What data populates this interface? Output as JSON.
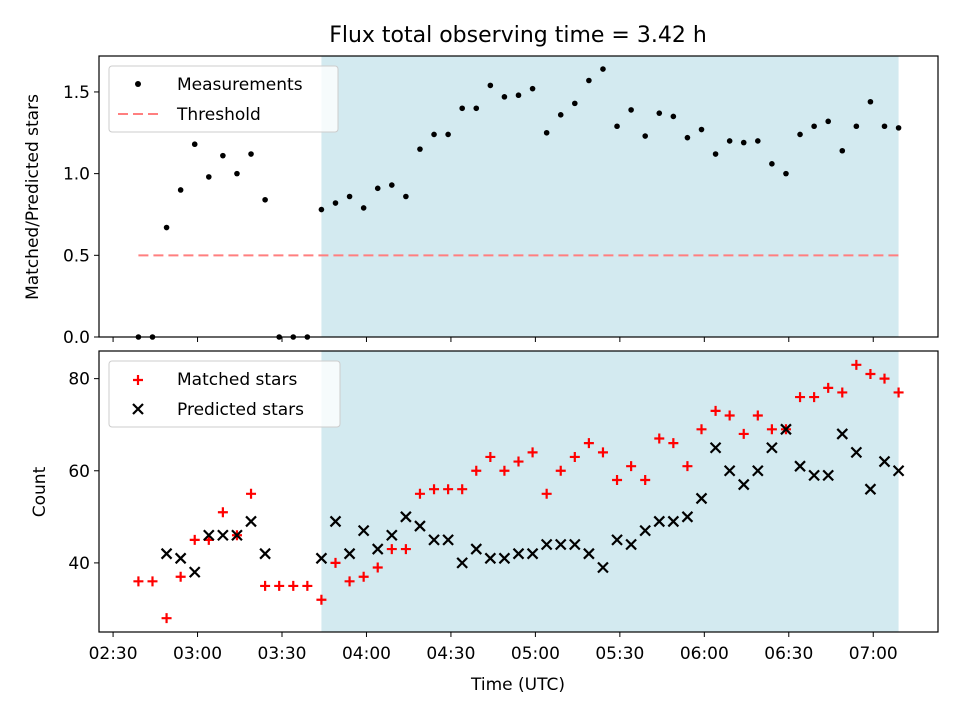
{
  "title": "Flux total observing time = 3.42 h",
  "colors": {
    "measurement": "#000000",
    "threshold": "#ff7f7f",
    "matched": "#ff0000",
    "predicted": "#000000",
    "shade": "#d3eaf0"
  },
  "chart_data": [
    {
      "type": "scatter",
      "ylabel": "Matched/Predicted stars",
      "xlim": [
        "02:25",
        "07:23"
      ],
      "ylim": [
        0,
        1.72
      ],
      "yticks": [
        "0.0",
        "0.5",
        "1.0",
        "1.5"
      ],
      "shaded_x_range": [
        "03:44",
        "07:09"
      ],
      "legend_position": "top-left",
      "threshold": {
        "name": "Threshold",
        "y": 0.5,
        "x_range": [
          "02:39",
          "07:09"
        ],
        "style": "dashed"
      },
      "series": [
        {
          "name": "Measurements",
          "marker": "dot",
          "x": [
            "02:39",
            "02:44",
            "02:49",
            "02:54",
            "02:59",
            "03:04",
            "03:09",
            "03:14",
            "03:19",
            "03:24",
            "03:29",
            "03:34",
            "03:39",
            "03:44",
            "03:49",
            "03:54",
            "03:59",
            "04:04",
            "04:09",
            "04:14",
            "04:19",
            "04:24",
            "04:29",
            "04:34",
            "04:39",
            "04:44",
            "04:49",
            "04:54",
            "04:59",
            "05:04",
            "05:09",
            "05:14",
            "05:19",
            "05:24",
            "05:29",
            "05:34",
            "05:39",
            "05:44",
            "05:49",
            "05:54",
            "05:59",
            "06:04",
            "06:09",
            "06:14",
            "06:19",
            "06:24",
            "06:29",
            "06:34",
            "06:39",
            "06:44",
            "06:49",
            "06:54",
            "06:59",
            "07:04",
            "07:09"
          ],
          "y": [
            0.0,
            0.0,
            0.67,
            0.9,
            1.18,
            0.98,
            1.11,
            1.0,
            1.12,
            0.84,
            0.0,
            0.0,
            0.0,
            0.78,
            0.82,
            0.86,
            0.79,
            0.91,
            0.93,
            0.86,
            1.15,
            1.24,
            1.24,
            1.4,
            1.4,
            1.54,
            1.47,
            1.48,
            1.52,
            1.25,
            1.36,
            1.43,
            1.57,
            1.64,
            1.29,
            1.39,
            1.23,
            1.37,
            1.35,
            1.22,
            1.27,
            1.12,
            1.2,
            1.19,
            1.2,
            1.06,
            1.0,
            1.24,
            1.29,
            1.32,
            1.14,
            1.29,
            1.44,
            1.29,
            1.28
          ]
        }
      ]
    },
    {
      "type": "scatter",
      "xlabel": "Time (UTC)",
      "ylabel": "Count",
      "xlim": [
        "02:25",
        "07:23"
      ],
      "ylim": [
        25,
        86
      ],
      "yticks": [
        "40",
        "60",
        "80"
      ],
      "xticks": [
        "02:30",
        "03:00",
        "03:30",
        "04:00",
        "04:30",
        "05:00",
        "05:30",
        "06:00",
        "06:30",
        "07:00"
      ],
      "shaded_x_range": [
        "03:44",
        "07:09"
      ],
      "legend_position": "top-left",
      "series": [
        {
          "name": "Matched stars",
          "marker": "plus",
          "x": [
            "02:39",
            "02:44",
            "02:49",
            "02:54",
            "02:59",
            "03:04",
            "03:09",
            "03:14",
            "03:19",
            "03:24",
            "03:29",
            "03:34",
            "03:39",
            "03:44",
            "03:49",
            "03:54",
            "03:59",
            "04:04",
            "04:09",
            "04:14",
            "04:19",
            "04:24",
            "04:29",
            "04:34",
            "04:39",
            "04:44",
            "04:49",
            "04:54",
            "04:59",
            "05:04",
            "05:09",
            "05:14",
            "05:19",
            "05:24",
            "05:29",
            "05:34",
            "05:39",
            "05:44",
            "05:49",
            "05:54",
            "05:59",
            "06:04",
            "06:09",
            "06:14",
            "06:19",
            "06:24",
            "06:29",
            "06:34",
            "06:39",
            "06:44",
            "06:49",
            "06:54",
            "06:59",
            "07:04",
            "07:09"
          ],
          "y": [
            36,
            36,
            28,
            37,
            45,
            45,
            51,
            46,
            55,
            35,
            35,
            35,
            35,
            32,
            40,
            36,
            37,
            39,
            43,
            43,
            55,
            56,
            56,
            56,
            60,
            63,
            60,
            62,
            64,
            55,
            60,
            63,
            66,
            64,
            58,
            61,
            58,
            67,
            66,
            61,
            69,
            73,
            72,
            68,
            72,
            69,
            69,
            76,
            76,
            78,
            77,
            83,
            81,
            80,
            77
          ]
        },
        {
          "name": "Predicted stars",
          "marker": "x",
          "x": [
            "02:49",
            "02:54",
            "02:59",
            "03:04",
            "03:09",
            "03:14",
            "03:19",
            "03:24",
            "03:44",
            "03:49",
            "03:54",
            "03:59",
            "04:04",
            "04:09",
            "04:14",
            "04:19",
            "04:24",
            "04:29",
            "04:34",
            "04:39",
            "04:44",
            "04:49",
            "04:54",
            "04:59",
            "05:04",
            "05:09",
            "05:14",
            "05:19",
            "05:24",
            "05:29",
            "05:34",
            "05:39",
            "05:44",
            "05:49",
            "05:54",
            "05:59",
            "06:04",
            "06:09",
            "06:14",
            "06:19",
            "06:24",
            "06:29",
            "06:34",
            "06:39",
            "06:44",
            "06:49",
            "06:54",
            "06:59",
            "07:04",
            "07:09"
          ],
          "y": [
            42,
            41,
            38,
            46,
            46,
            46,
            49,
            42,
            41,
            49,
            42,
            47,
            43,
            46,
            50,
            48,
            45,
            45,
            40,
            43,
            41,
            41,
            42,
            42,
            44,
            44,
            44,
            42,
            39,
            45,
            44,
            47,
            49,
            49,
            50,
            54,
            65,
            60,
            57,
            60,
            65,
            69,
            61,
            59,
            59,
            68,
            64,
            56,
            62,
            60
          ]
        }
      ]
    }
  ]
}
